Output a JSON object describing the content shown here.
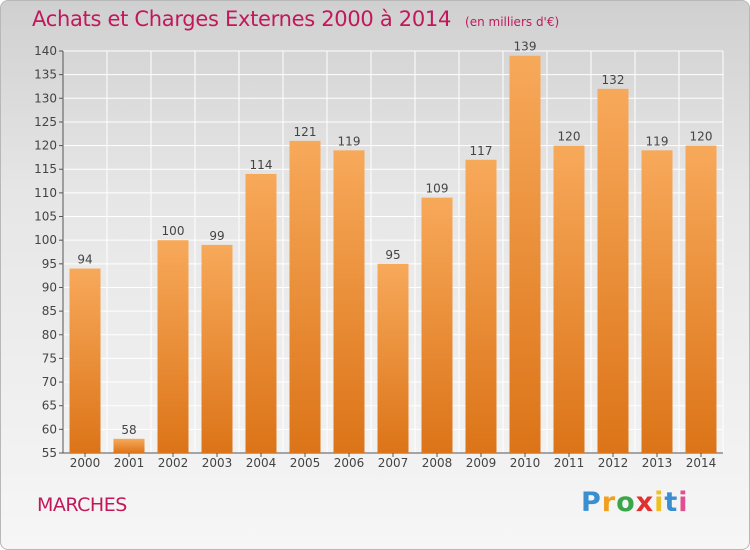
{
  "page": {
    "title": "Achats et Charges Externes 2000 à 2014",
    "unit": "(en milliers d'€)",
    "city": "MARCHES",
    "logo_letters": [
      "P",
      "r",
      "o",
      "x",
      "i",
      "t",
      "i"
    ]
  },
  "colors": {
    "title": "#c2185b",
    "bar_top": "#f7a95a",
    "bar_bottom": "#dc7418",
    "grid": "#ffffff"
  },
  "chart_data": {
    "type": "bar",
    "title": "Achats et Charges Externes 2000 à 2014",
    "subtitle": "(en milliers d'€)",
    "categories": [
      "2000",
      "2001",
      "2002",
      "2003",
      "2004",
      "2005",
      "2006",
      "2007",
      "2008",
      "2009",
      "2010",
      "2011",
      "2012",
      "2013",
      "2014"
    ],
    "values": [
      94,
      58,
      100,
      99,
      114,
      121,
      119,
      95,
      109,
      117,
      139,
      120,
      132,
      119,
      120
    ],
    "data_labels": [
      "94",
      "58",
      "100",
      "99",
      "114",
      "121",
      "119",
      "95",
      "109",
      "117",
      "139",
      "120",
      "132",
      "119",
      "120"
    ],
    "yticks": [
      "55",
      "60",
      "65",
      "70",
      "75",
      "80",
      "85",
      "90",
      "95",
      "100",
      "105",
      "110",
      "115",
      "120",
      "125",
      "130",
      "135",
      "140"
    ],
    "ylim": [
      55,
      140
    ],
    "grid": true,
    "legend": "none"
  }
}
